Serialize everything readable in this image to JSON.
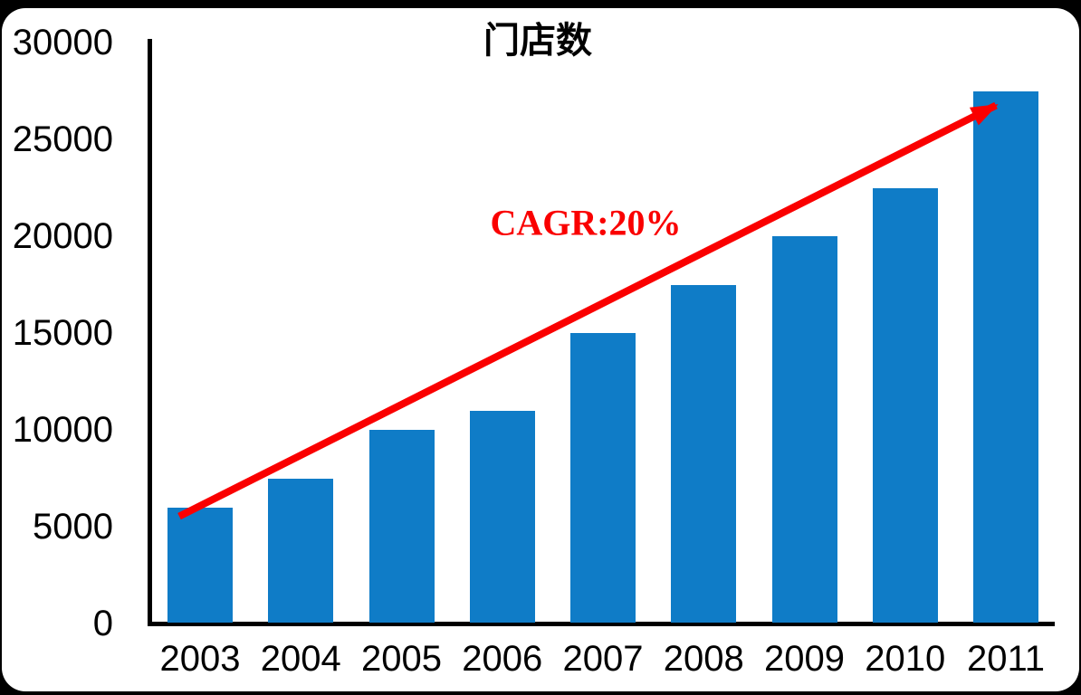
{
  "page": {
    "background": "#000000",
    "card_background": "#FFFFFF"
  },
  "chart_data": {
    "type": "bar",
    "title": "门店数",
    "categories": [
      "2003",
      "2004",
      "2005",
      "2006",
      "2007",
      "2008",
      "2009",
      "2010",
      "2011"
    ],
    "values": [
      6000,
      7500,
      10000,
      11000,
      15000,
      17500,
      20000,
      22500,
      27500
    ],
    "xlabel": "",
    "ylabel": "",
    "ylim": [
      0,
      30000
    ],
    "ytick_step": 5000,
    "ytick_labels": [
      "0",
      "5000",
      "10000",
      "15000",
      "20000",
      "25000",
      "30000"
    ],
    "grid": "off",
    "legend": "none",
    "bar_color": "#0F7CC7",
    "axis_color": "#000000",
    "tick_label_color": "#000000",
    "title_color": "#000000",
    "annotation": {
      "text": "CAGR:20%",
      "color": "#FA0000",
      "arrow_from": "top of 2003 bar",
      "arrow_to": "top of 2011 bar"
    }
  }
}
